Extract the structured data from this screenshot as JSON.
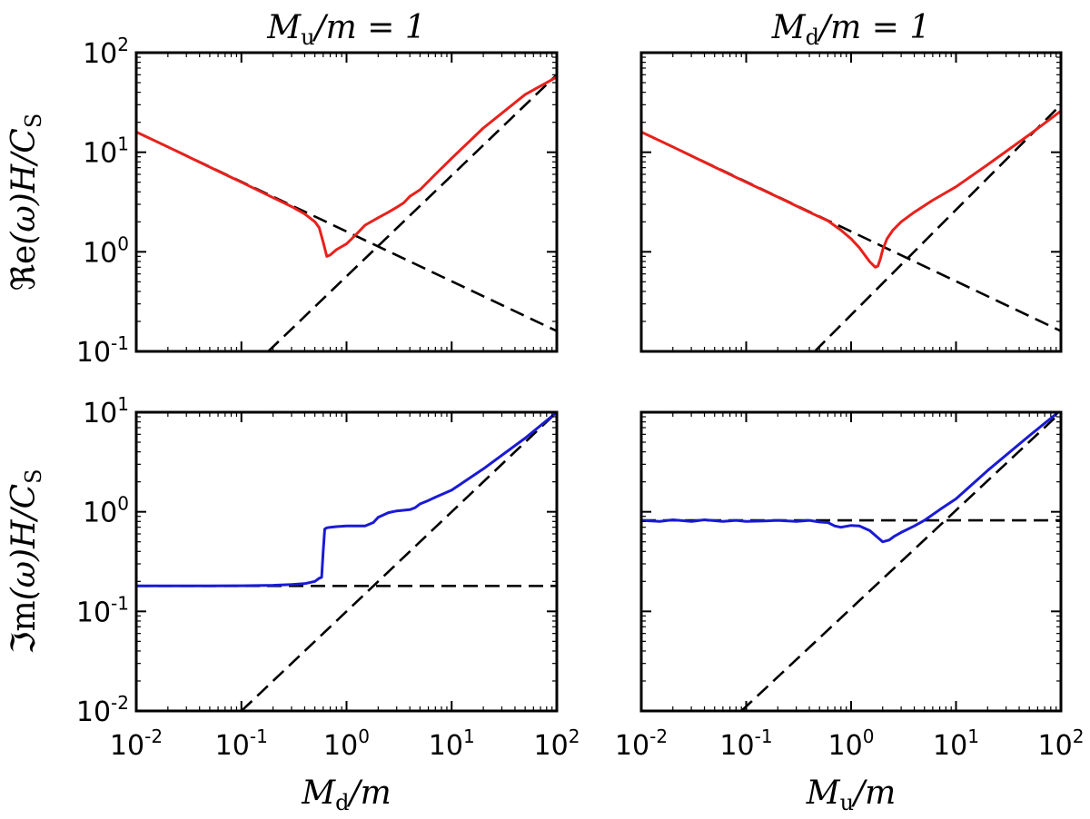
{
  "chart_data": [
    {
      "type": "line",
      "id": "panel-top-left",
      "title": {
        "symbol": "M",
        "sub": "u",
        "rest": "/m = 1"
      },
      "ylabel": {
        "fraktur": "ℜe",
        "rest": "(ω)H/C",
        "sub": "S"
      },
      "xlabel": null,
      "xscale": "log",
      "yscale": "log",
      "xlim": [
        0.01,
        100
      ],
      "ylim": [
        0.1,
        100
      ],
      "x_ticks": [
        0.01,
        0.1,
        1,
        10,
        100
      ],
      "y_ticks": [
        0.1,
        1,
        10,
        100
      ],
      "x_tick_labels_shown": false,
      "y_tick_labels_shown": true,
      "grid": false,
      "series": [
        {
          "role": "solution",
          "color": "#e8211c",
          "x": [
            0.01,
            0.02,
            0.05,
            0.1,
            0.2,
            0.3,
            0.4,
            0.5,
            0.55,
            0.6,
            0.65,
            0.7,
            0.8,
            1.0,
            1.2,
            1.5,
            2.0,
            2.5,
            3.0,
            3.5,
            4.0,
            5.0,
            7.0,
            10,
            20,
            50,
            100
          ],
          "y": [
            16,
            11.3,
            7.1,
            5.0,
            3.5,
            2.85,
            2.4,
            2.0,
            1.75,
            1.25,
            0.9,
            0.93,
            1.05,
            1.2,
            1.45,
            1.85,
            2.2,
            2.5,
            2.8,
            3.1,
            3.6,
            4.2,
            6.0,
            8.7,
            17.5,
            38,
            57
          ]
        },
        {
          "role": "asymptote-falling",
          "color": "#000000",
          "style": "dashed",
          "x": [
            0.01,
            100
          ],
          "y": [
            16,
            0.16
          ]
        },
        {
          "role": "asymptote-rising",
          "color": "#000000",
          "style": "dashed",
          "x": [
            0.18,
            100
          ],
          "y": [
            0.1,
            60
          ]
        }
      ]
    },
    {
      "type": "line",
      "id": "panel-top-right",
      "title": {
        "symbol": "M",
        "sub": "d",
        "rest": "/m = 1"
      },
      "ylabel": null,
      "xlabel": null,
      "xscale": "log",
      "yscale": "log",
      "xlim": [
        0.01,
        100
      ],
      "ylim": [
        0.1,
        100
      ],
      "x_ticks": [
        0.01,
        0.1,
        1,
        10,
        100
      ],
      "y_ticks": [
        0.1,
        1,
        10,
        100
      ],
      "x_tick_labels_shown": false,
      "y_tick_labels_shown": false,
      "grid": false,
      "series": [
        {
          "role": "solution",
          "color": "#e8211c",
          "x": [
            0.01,
            0.02,
            0.05,
            0.1,
            0.2,
            0.4,
            0.6,
            0.8,
            1.0,
            1.2,
            1.5,
            1.7,
            1.8,
            1.9,
            2.0,
            2.2,
            2.5,
            3.0,
            4.0,
            6.0,
            10,
            20,
            50,
            100
          ],
          "y": [
            16,
            11.3,
            7.1,
            5.0,
            3.55,
            2.5,
            2.05,
            1.65,
            1.35,
            1.1,
            0.8,
            0.7,
            0.72,
            0.85,
            1.05,
            1.35,
            1.65,
            2.0,
            2.5,
            3.3,
            4.5,
            7.5,
            15,
            26
          ]
        },
        {
          "role": "asymptote-falling",
          "color": "#000000",
          "style": "dashed",
          "x": [
            0.01,
            100
          ],
          "y": [
            16,
            0.16
          ]
        },
        {
          "role": "asymptote-rising",
          "color": "#000000",
          "style": "dashed",
          "x": [
            0.45,
            100
          ],
          "y": [
            0.1,
            30
          ]
        }
      ]
    },
    {
      "type": "line",
      "id": "panel-bottom-left",
      "title": null,
      "ylabel": {
        "fraktur": "ℑm",
        "rest": "(ω)H/C",
        "sub": "S"
      },
      "xlabel": {
        "symbol": "M",
        "sub": "d",
        "rest": "/m"
      },
      "xscale": "log",
      "yscale": "log",
      "xlim": [
        0.01,
        100
      ],
      "ylim": [
        0.01,
        10
      ],
      "x_ticks": [
        0.01,
        0.1,
        1,
        10,
        100
      ],
      "y_ticks": [
        0.01,
        0.1,
        1,
        10
      ],
      "x_tick_labels_shown": true,
      "y_tick_labels_shown": true,
      "grid": false,
      "series": [
        {
          "role": "solution",
          "color": "#1a1ad6",
          "x": [
            0.01,
            0.05,
            0.1,
            0.2,
            0.3,
            0.4,
            0.5,
            0.55,
            0.58,
            0.6,
            0.62,
            0.65,
            0.7,
            0.8,
            1.0,
            1.2,
            1.5,
            1.8,
            2.0,
            2.5,
            3.0,
            4.0,
            4.5,
            5.0,
            6.0,
            7.0,
            10,
            20,
            50,
            100
          ],
          "y": [
            0.18,
            0.18,
            0.181,
            0.183,
            0.186,
            0.19,
            0.2,
            0.215,
            0.22,
            0.4,
            0.67,
            0.69,
            0.7,
            0.71,
            0.72,
            0.72,
            0.72,
            0.78,
            0.88,
            0.98,
            1.02,
            1.05,
            1.1,
            1.2,
            1.3,
            1.4,
            1.65,
            2.7,
            5.5,
            10
          ]
        },
        {
          "role": "asymptote-flat",
          "color": "#000000",
          "style": "dashed",
          "x": [
            0.01,
            100
          ],
          "y": [
            0.18,
            0.18
          ]
        },
        {
          "role": "asymptote-rising",
          "color": "#000000",
          "style": "dashed",
          "x": [
            0.1,
            100
          ],
          "y": [
            0.01,
            10
          ]
        }
      ]
    },
    {
      "type": "line",
      "id": "panel-bottom-right",
      "title": null,
      "ylabel": null,
      "xlabel": {
        "symbol": "M",
        "sub": "u",
        "rest": "/m"
      },
      "xscale": "log",
      "yscale": "log",
      "xlim": [
        0.01,
        100
      ],
      "ylim": [
        0.01,
        10
      ],
      "x_ticks": [
        0.01,
        0.1,
        1,
        10,
        100
      ],
      "y_ticks": [
        0.01,
        0.1,
        1,
        10
      ],
      "x_tick_labels_shown": true,
      "y_tick_labels_shown": false,
      "grid": false,
      "series": [
        {
          "role": "solution",
          "color": "#1a1ad6",
          "x": [
            0.01,
            0.015,
            0.02,
            0.03,
            0.04,
            0.06,
            0.08,
            0.1,
            0.15,
            0.2,
            0.3,
            0.4,
            0.5,
            0.6,
            0.7,
            0.8,
            1.0,
            1.2,
            1.5,
            1.8,
            2.0,
            2.3,
            2.6,
            3.0,
            4.0,
            5.0,
            7.0,
            10,
            20,
            50,
            100
          ],
          "y": [
            0.82,
            0.8,
            0.83,
            0.8,
            0.83,
            0.8,
            0.82,
            0.8,
            0.81,
            0.82,
            0.8,
            0.82,
            0.79,
            0.78,
            0.72,
            0.7,
            0.73,
            0.72,
            0.65,
            0.55,
            0.5,
            0.52,
            0.57,
            0.62,
            0.72,
            0.82,
            1.05,
            1.35,
            2.6,
            5.8,
            10.5
          ]
        },
        {
          "role": "asymptote-flat",
          "color": "#000000",
          "style": "dashed",
          "x": [
            0.01,
            100
          ],
          "y": [
            0.82,
            0.82
          ]
        },
        {
          "role": "asymptote-rising",
          "color": "#000000",
          "style": "dashed",
          "x": [
            0.09,
            100
          ],
          "y": [
            0.01,
            10
          ]
        }
      ]
    }
  ]
}
